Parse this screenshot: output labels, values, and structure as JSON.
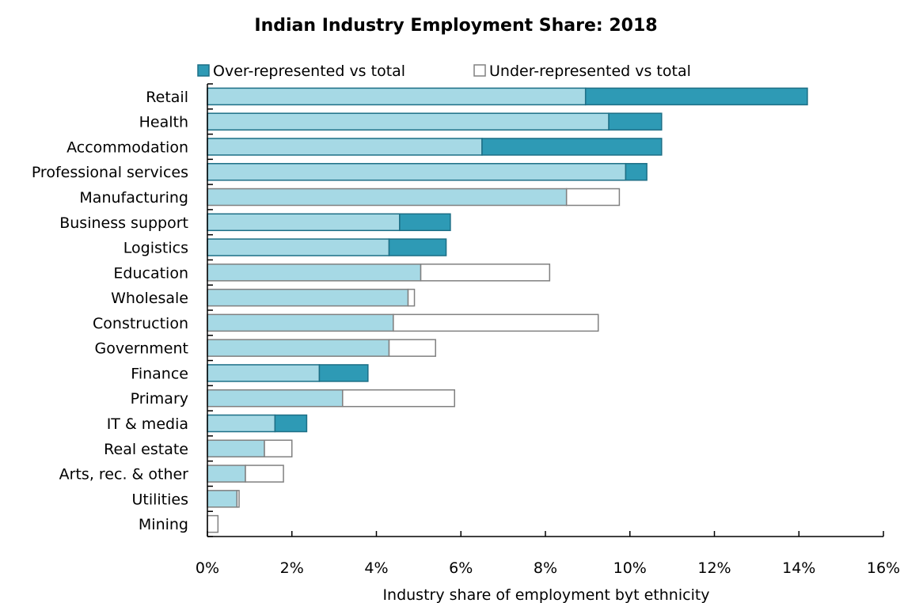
{
  "chart_data": {
    "type": "bar",
    "orientation": "horizontal",
    "stacked": true,
    "title": "Indian Industry Employment Share: 2018",
    "xlabel": "Industry share of employment byt ethnicity",
    "ylabel": "",
    "xlim": [
      0,
      16
    ],
    "x_ticks": [
      "0%",
      "2%",
      "4%",
      "6%",
      "8%",
      "10%",
      "12%",
      "14%",
      "16%"
    ],
    "grid": false,
    "legend_position": "top",
    "legend": [
      {
        "label": "Over-represented vs total",
        "color": "#2e9ab5"
      },
      {
        "label": "Under-represented vs total",
        "color": "#ffffff"
      }
    ],
    "colors": {
      "base": "#a6d9e5",
      "over": "#2e9ab5",
      "under": "#ffffff",
      "edge_over": "#1d6f86",
      "edge_under": "#808080"
    },
    "categories": [
      "Retail",
      "Health",
      "Accommodation",
      "Professional services",
      "Manufacturing",
      "Business support",
      "Logistics",
      "Education",
      "Wholesale",
      "Construction",
      "Government ",
      "Finance",
      "Primary",
      "IT & media",
      "Real estate",
      "Arts, rec. & other",
      "Utilities",
      "Mining"
    ],
    "series": [
      {
        "name": "",
        "role": "base",
        "values": [
          8.95,
          9.5,
          6.5,
          9.9,
          8.5,
          4.55,
          4.3,
          5.05,
          4.75,
          4.4,
          4.3,
          2.65,
          3.2,
          1.6,
          1.35,
          0.9,
          0.7,
          0.0
        ]
      },
      {
        "name": "Over-represented vs total",
        "role": "over",
        "values": [
          5.25,
          1.25,
          4.25,
          0.5,
          0,
          1.2,
          1.35,
          0,
          0,
          0,
          0,
          1.15,
          0,
          0.75,
          0,
          0,
          0,
          0
        ]
      },
      {
        "name": "Under-represented vs total",
        "role": "under",
        "values": [
          0,
          0,
          0,
          0,
          1.25,
          0,
          0,
          3.05,
          0.15,
          4.85,
          1.1,
          0,
          2.65,
          0,
          0.65,
          0.9,
          0.05,
          0.25
        ]
      }
    ]
  }
}
